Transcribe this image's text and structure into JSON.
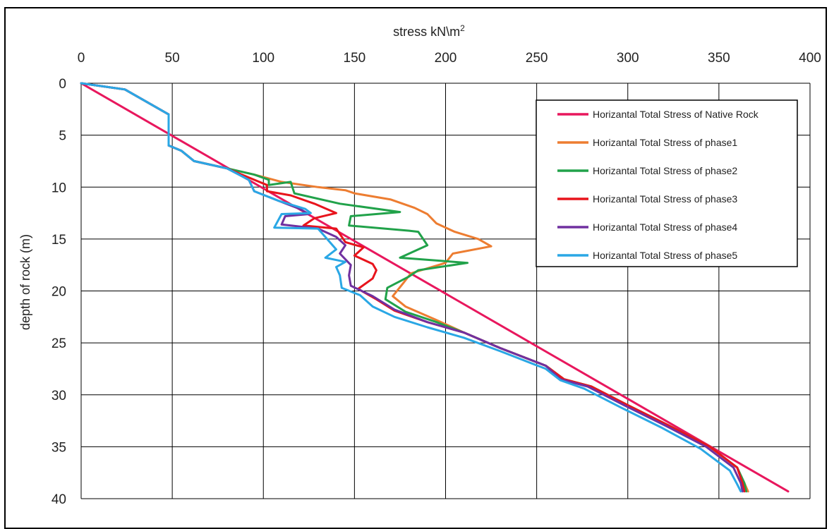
{
  "chart_data": {
    "type": "line",
    "xlabel": "stress kN\\m",
    "xlabel_sup": "2",
    "ylabel": "depth of rock (m)",
    "xlim": [
      0,
      400
    ],
    "ylim": [
      0,
      40
    ],
    "y_inverted": true,
    "x_axis_position": "top",
    "x_ticks": [
      0,
      50,
      100,
      150,
      200,
      250,
      300,
      350,
      400
    ],
    "y_ticks": [
      0,
      5,
      10,
      15,
      20,
      25,
      30,
      35,
      40
    ],
    "grid": true,
    "legend_position": "top-right",
    "series": [
      {
        "name": "Horizantal Total Stress of Native Rock",
        "color": "#e8175d",
        "points": [
          [
            0,
            0
          ],
          [
            388,
            39.3
          ]
        ]
      },
      {
        "name": "Horizantal Total Stress of phase1",
        "color": "#ed7d31",
        "points": [
          [
            0,
            0
          ],
          [
            24,
            0.6
          ],
          [
            48,
            3
          ],
          [
            48,
            6
          ],
          [
            55,
            6.5
          ],
          [
            62,
            7.5
          ],
          [
            80,
            8.2
          ],
          [
            95,
            8.8
          ],
          [
            110,
            9.5
          ],
          [
            130,
            10
          ],
          [
            145,
            10.3
          ],
          [
            150,
            10.6
          ],
          [
            170,
            11.2
          ],
          [
            183,
            12
          ],
          [
            190,
            12.6
          ],
          [
            195,
            13.5
          ],
          [
            205,
            14.3
          ],
          [
            218,
            15
          ],
          [
            225,
            15.7
          ],
          [
            204,
            16.4
          ],
          [
            200,
            17.3
          ],
          [
            181,
            18.3
          ],
          [
            177,
            19.2
          ],
          [
            171,
            20.5
          ],
          [
            178,
            21.5
          ],
          [
            195,
            22.8
          ],
          [
            210,
            24
          ],
          [
            230,
            25.5
          ],
          [
            255,
            27.2
          ],
          [
            265,
            28.5
          ],
          [
            280,
            29.2
          ],
          [
            300,
            31
          ],
          [
            323,
            33
          ],
          [
            345,
            35
          ],
          [
            360,
            37
          ],
          [
            364,
            38.5
          ],
          [
            366,
            39.3
          ]
        ]
      },
      {
        "name": "Horizantal Total Stress of phase2",
        "color": "#21a24a",
        "points": [
          [
            0,
            0
          ],
          [
            24,
            0.6
          ],
          [
            48,
            3
          ],
          [
            48,
            6
          ],
          [
            55,
            6.5
          ],
          [
            62,
            7.5
          ],
          [
            80,
            8.2
          ],
          [
            95,
            8.8
          ],
          [
            103,
            9.3
          ],
          [
            103,
            9.8
          ],
          [
            115,
            9.5
          ],
          [
            117,
            10.6
          ],
          [
            142,
            11.6
          ],
          [
            175,
            12.4
          ],
          [
            148,
            12.8
          ],
          [
            147,
            13.7
          ],
          [
            180,
            14.2
          ],
          [
            185,
            14.3
          ],
          [
            190,
            15.6
          ],
          [
            175,
            16.8
          ],
          [
            212,
            17.3
          ],
          [
            185,
            18
          ],
          [
            180,
            18.6
          ],
          [
            168,
            19.7
          ],
          [
            167,
            20.8
          ],
          [
            178,
            22
          ],
          [
            195,
            23
          ],
          [
            210,
            24
          ],
          [
            230,
            25.5
          ],
          [
            255,
            27.2
          ],
          [
            265,
            28.5
          ],
          [
            280,
            29.2
          ],
          [
            300,
            31
          ],
          [
            323,
            33
          ],
          [
            345,
            35
          ],
          [
            360,
            37
          ],
          [
            364,
            38.5
          ],
          [
            365,
            39.3
          ]
        ]
      },
      {
        "name": "Horizantal Total Stress of phase3",
        "color": "#e8141c",
        "points": [
          [
            0,
            0
          ],
          [
            24,
            0.6
          ],
          [
            48,
            3
          ],
          [
            48,
            6
          ],
          [
            55,
            6.5
          ],
          [
            62,
            7.5
          ],
          [
            80,
            8.2
          ],
          [
            95,
            9.3
          ],
          [
            102,
            9.8
          ],
          [
            102,
            10.4
          ],
          [
            115,
            10.8
          ],
          [
            128,
            11.6
          ],
          [
            140,
            12.5
          ],
          [
            128,
            13
          ],
          [
            122,
            13.7
          ],
          [
            140,
            14
          ],
          [
            145,
            15.3
          ],
          [
            155,
            15.8
          ],
          [
            150,
            16.6
          ],
          [
            160,
            17.4
          ],
          [
            162,
            18
          ],
          [
            160,
            18.8
          ],
          [
            152,
            19.8
          ],
          [
            162,
            20.8
          ],
          [
            172,
            21.9
          ],
          [
            190,
            23
          ],
          [
            210,
            24
          ],
          [
            230,
            25.5
          ],
          [
            255,
            27.2
          ],
          [
            265,
            28.5
          ],
          [
            280,
            29.2
          ],
          [
            300,
            31
          ],
          [
            323,
            33
          ],
          [
            345,
            35
          ],
          [
            360,
            37
          ],
          [
            363,
            38.5
          ],
          [
            364,
            39.3
          ]
        ]
      },
      {
        "name": "Horizantal Total Stress of phase4",
        "color": "#7030a0",
        "points": [
          [
            0,
            0
          ],
          [
            24,
            0.6
          ],
          [
            48,
            3
          ],
          [
            48,
            6
          ],
          [
            55,
            6.5
          ],
          [
            62,
            7.5
          ],
          [
            80,
            8.2
          ],
          [
            92,
            9.3
          ],
          [
            95,
            10.4
          ],
          [
            108,
            11.3
          ],
          [
            120,
            12.1
          ],
          [
            125,
            12.6
          ],
          [
            112,
            12.8
          ],
          [
            110,
            13.6
          ],
          [
            130,
            14
          ],
          [
            140,
            14.8
          ],
          [
            145,
            15.6
          ],
          [
            142,
            16.4
          ],
          [
            148,
            17.5
          ],
          [
            147,
            18.5
          ],
          [
            148,
            19.5
          ],
          [
            160,
            20.5
          ],
          [
            172,
            21.8
          ],
          [
            190,
            23
          ],
          [
            210,
            24
          ],
          [
            230,
            25.5
          ],
          [
            255,
            27.2
          ],
          [
            263,
            28.5
          ],
          [
            278,
            29.2
          ],
          [
            298,
            31
          ],
          [
            321,
            33
          ],
          [
            343,
            35
          ],
          [
            358,
            37
          ],
          [
            362,
            38.5
          ],
          [
            363,
            39.3
          ]
        ]
      },
      {
        "name": "Horizantal Total Stress of phase5",
        "color": "#2aa7e5",
        "points": [
          [
            0,
            0
          ],
          [
            24,
            0.6
          ],
          [
            48,
            3
          ],
          [
            48,
            6
          ],
          [
            55,
            6.5
          ],
          [
            62,
            7.5
          ],
          [
            80,
            8.2
          ],
          [
            92,
            9.3
          ],
          [
            95,
            10.4
          ],
          [
            108,
            11.3
          ],
          [
            123,
            12.1
          ],
          [
            126,
            12.5
          ],
          [
            110,
            12.6
          ],
          [
            106,
            13.9
          ],
          [
            130,
            14
          ],
          [
            135,
            15
          ],
          [
            140,
            16
          ],
          [
            134,
            16.8
          ],
          [
            145,
            17.2
          ],
          [
            140,
            17.7
          ],
          [
            142,
            18.5
          ],
          [
            143,
            19.7
          ],
          [
            153,
            20.4
          ],
          [
            160,
            21.5
          ],
          [
            172,
            22.5
          ],
          [
            190,
            23.5
          ],
          [
            210,
            24.5
          ],
          [
            230,
            25.8
          ],
          [
            255,
            27.5
          ],
          [
            263,
            28.6
          ],
          [
            276,
            29.4
          ],
          [
            296,
            31.2
          ],
          [
            319,
            33.2
          ],
          [
            340,
            35.2
          ],
          [
            356,
            37.3
          ],
          [
            360,
            38.6
          ],
          [
            362,
            39.3
          ]
        ]
      }
    ]
  }
}
